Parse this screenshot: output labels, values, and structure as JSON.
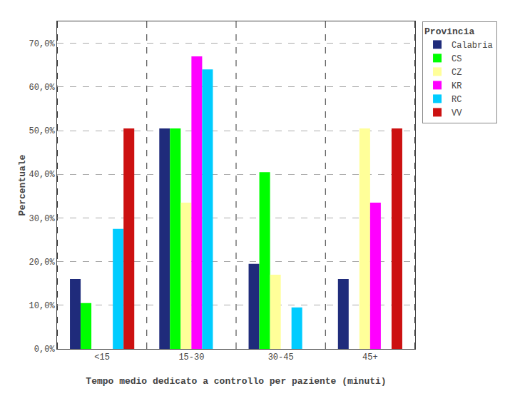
{
  "chart_data": {
    "type": "bar",
    "categories": [
      "<15",
      "15-30",
      "30-45",
      "45+"
    ],
    "series": [
      {
        "name": "Calabria",
        "color": "#1f2b7b",
        "values": [
          16.0,
          50.5,
          19.5,
          16.0
        ]
      },
      {
        "name": "CS",
        "color": "#00ff00",
        "values": [
          10.5,
          50.5,
          40.5,
          0.0
        ]
      },
      {
        "name": "CZ",
        "color": "#ffff99",
        "values": [
          0.0,
          33.5,
          17.0,
          50.5
        ]
      },
      {
        "name": "KR",
        "color": "#ff00ff",
        "values": [
          0.0,
          67.0,
          0.0,
          33.5
        ]
      },
      {
        "name": "RC",
        "color": "#00ccff",
        "values": [
          27.5,
          64.0,
          9.5,
          0.0
        ]
      },
      {
        "name": "VV",
        "color": "#cc1111",
        "values": [
          50.5,
          0.0,
          0.0,
          50.5
        ]
      }
    ],
    "xlabel": "Tempo medio dedicato a controllo per paziente (minuti)",
    "ylabel": "Percentuale",
    "ylim": [
      0,
      75
    ],
    "yticks": [
      {
        "value": 0,
        "label": "0,0%"
      },
      {
        "value": 10,
        "label": "10,0%"
      },
      {
        "value": 20,
        "label": "20,0%"
      },
      {
        "value": 30,
        "label": "30,0%"
      },
      {
        "value": 40,
        "label": "40,0%"
      },
      {
        "value": 50,
        "label": "50,0%"
      },
      {
        "value": 60,
        "label": "60,0%"
      },
      {
        "value": 70,
        "label": "70,0%"
      }
    ],
    "grid": true,
    "legend": "right",
    "legend_title": "Provincia"
  }
}
